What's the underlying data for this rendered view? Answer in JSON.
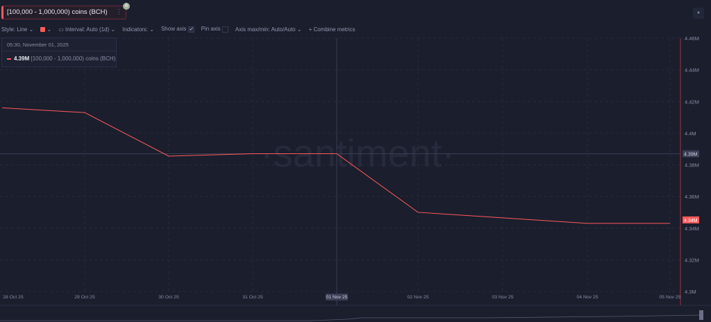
{
  "metric": {
    "label": "[100,000 - 1,000,000) coins (BCH)",
    "badge": "B",
    "menu": "⋮"
  },
  "toolbar": {
    "style": "Style: Line",
    "interval": "Interval: Auto (1d)",
    "indicators": "Indicators:",
    "show_axis": "Show axis",
    "show_axis_checked": true,
    "pin_axis": "Pin axis",
    "pin_axis_checked": false,
    "axis_maxmin": "Axis max/min: Auto/Auto",
    "combine": "+ Combine metrics",
    "line_color": "#ff5b5b"
  },
  "tooltip": {
    "date": "05:30, November 01, 2025",
    "value": "4.39M",
    "series": "[100,000 - 1,000,000) coins (BCH)"
  },
  "watermark": "·santiment·",
  "chart_data": {
    "type": "line",
    "x": [
      "28 Oct 25",
      "29 Oct 25",
      "30 Oct 25",
      "31 Oct 25",
      "01 Nov 25",
      "02 Nov 25",
      "03 Nov 25",
      "04 Nov 25",
      "05 Nov 25"
    ],
    "series": [
      {
        "values": [
          4.416,
          4.413,
          4.3855,
          4.387,
          4.387,
          4.35,
          4.3465,
          4.343,
          4.343
        ],
        "color": "#ff5b5b"
      }
    ],
    "y_ticks": [
      "4.46M",
      "4.44M",
      "4.42M",
      "4.4M",
      "4.38M",
      "4.36M",
      "4.34M",
      "4.32M",
      "4.3M"
    ],
    "ylim": [
      4.3,
      4.46
    ],
    "hover_x": "01 Nov 25",
    "hover_label": "4.39M",
    "last_value_label": "4.34M",
    "grid": true
  }
}
